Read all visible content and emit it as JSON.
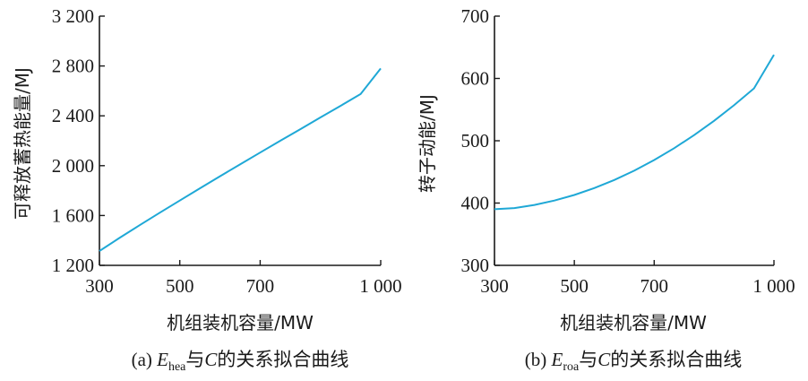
{
  "colors": {
    "series": "#1fa8d6",
    "axis": "#1a1a1a"
  },
  "chart_data": [
    {
      "type": "line",
      "panel": "a",
      "xlabel": "机组装机容量/MW",
      "ylabel": "可释放蓄热能量/MJ",
      "xlim": [
        300,
        1000
      ],
      "ylim": [
        1200,
        3200
      ],
      "xticks": [
        300,
        500,
        700,
        1000
      ],
      "xtick_labels": [
        "300",
        "500",
        "700",
        "1 000"
      ],
      "yticks": [
        1200,
        1600,
        2000,
        2400,
        2800,
        3200
      ],
      "ytick_labels": [
        "1 200",
        "1 600",
        "2 000",
        "2 400",
        "2 800",
        "3 200"
      ],
      "series": [
        {
          "x": [
            300,
            350,
            400,
            450,
            500,
            550,
            600,
            650,
            700,
            750,
            800,
            850,
            900,
            950,
            1000
          ],
          "y": [
            1315,
            1420,
            1522,
            1622,
            1720,
            1818,
            1915,
            2010,
            2105,
            2200,
            2293,
            2387,
            2480,
            2575,
            2780
          ]
        }
      ],
      "caption": {
        "prefix": "(a) ",
        "var": "E",
        "sub": "hea",
        "mid": "与",
        "var2": "C",
        "suffix": "的关系拟合曲线"
      }
    },
    {
      "type": "line",
      "panel": "b",
      "xlabel": "机组装机容量/MW",
      "ylabel": "转子动能/MJ",
      "xlim": [
        300,
        1000
      ],
      "ylim": [
        300,
        700
      ],
      "xticks": [
        300,
        500,
        700,
        1000
      ],
      "xtick_labels": [
        "300",
        "500",
        "700",
        "1 000"
      ],
      "yticks": [
        300,
        400,
        500,
        600,
        700
      ],
      "ytick_labels": [
        "300",
        "400",
        "500",
        "600",
        "700"
      ],
      "series": [
        {
          "x": [
            300,
            350,
            400,
            450,
            500,
            550,
            600,
            650,
            700,
            750,
            800,
            850,
            900,
            950,
            1000
          ],
          "y": [
            390,
            392,
            397,
            404,
            413,
            424,
            437,
            452,
            469,
            488,
            509,
            532,
            557,
            584,
            638
          ]
        }
      ],
      "caption": {
        "prefix": "(b) ",
        "var": "E",
        "sub": "roa",
        "mid": "与",
        "var2": "C",
        "suffix": "的关系拟合曲线"
      }
    }
  ]
}
